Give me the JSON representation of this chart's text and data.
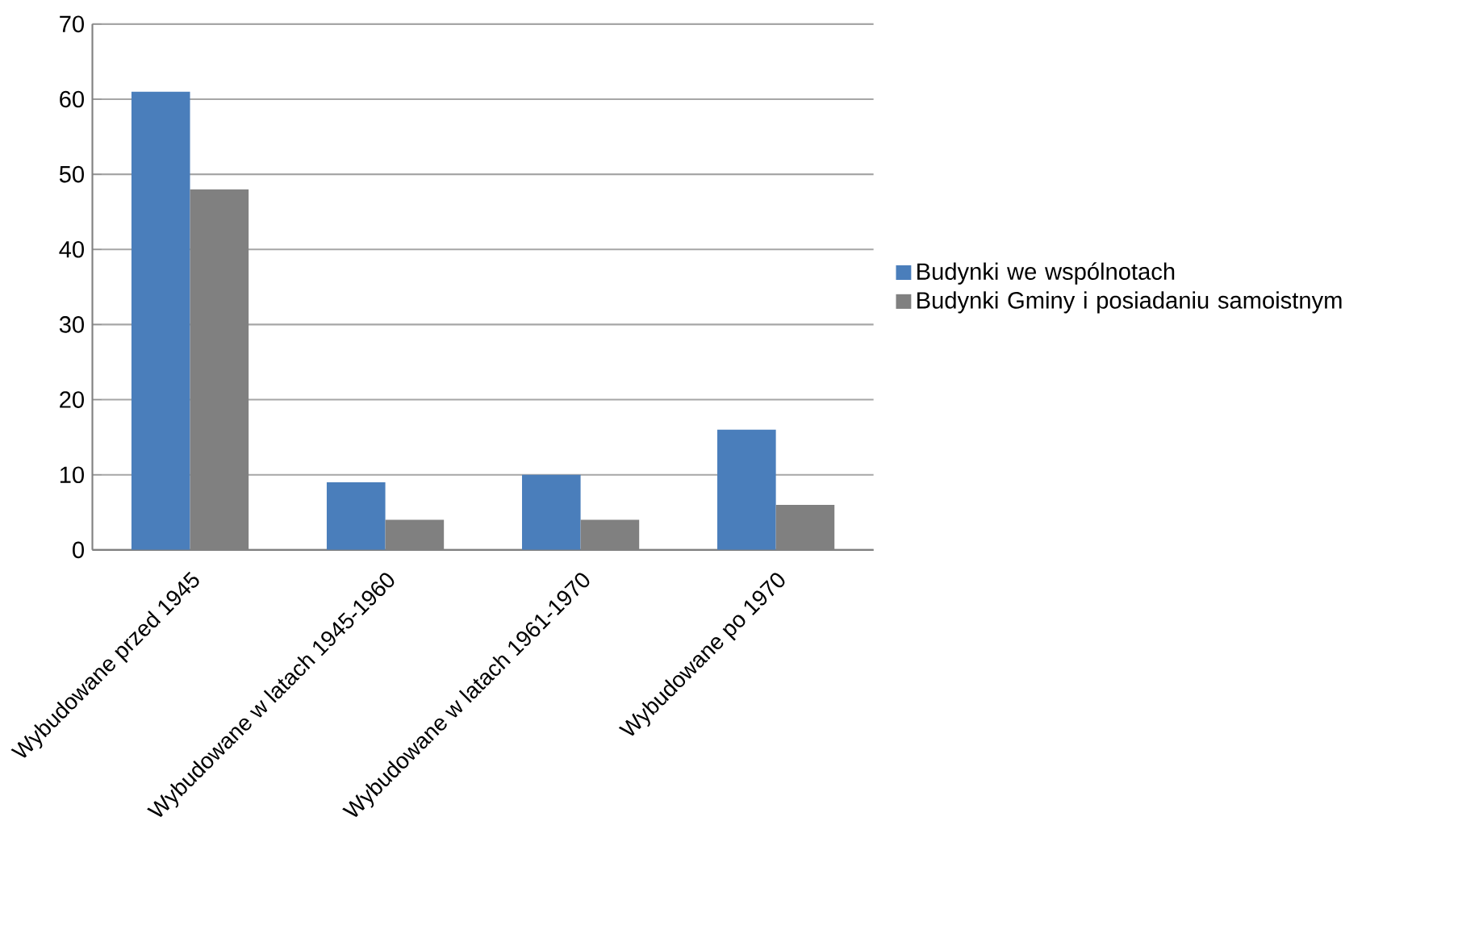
{
  "chart_data": {
    "type": "bar",
    "categories": [
      "Wybudowane przed 1945",
      "Wybudowane w latach 1945-1960",
      "Wybudowane w latach 1961-1970",
      "Wybudowane po 1970"
    ],
    "series": [
      {
        "name": "Budynki we wspólnotach",
        "color": "#4a7ebb",
        "values": [
          61,
          9,
          10,
          16
        ]
      },
      {
        "name": "Budynki Gminy i posiadaniu samoistnym",
        "color": "#808080",
        "values": [
          48,
          4,
          4,
          6
        ]
      }
    ],
    "ylim": [
      0,
      70
    ],
    "yticks": [
      0,
      10,
      20,
      30,
      40,
      50,
      60,
      70
    ],
    "grid": "y",
    "legend": "right"
  }
}
